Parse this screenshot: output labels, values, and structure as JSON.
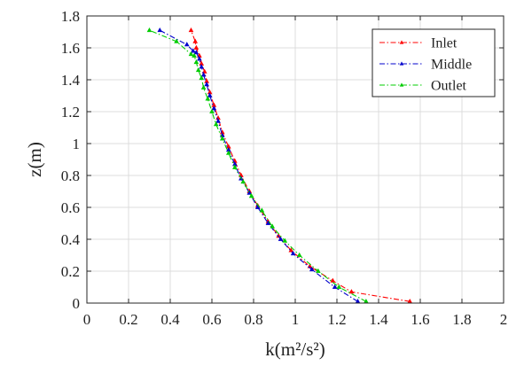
{
  "chart_data": {
    "type": "line",
    "title": "",
    "xlabel": "k(m²/s²)",
    "ylabel": "z(m)",
    "xlim": [
      0,
      2
    ],
    "ylim": [
      0,
      1.8
    ],
    "xticks": [
      "0",
      "0.2",
      "0.4",
      "0.6",
      "0.8",
      "1",
      "1.2",
      "1.4",
      "1.6",
      "1.8",
      "2"
    ],
    "yticks": [
      "0",
      "0.2",
      "0.4",
      "0.6",
      "0.8",
      "1",
      "1.2",
      "1.4",
      "1.6",
      "1.8"
    ],
    "grid": true,
    "legend_position": "top-right",
    "series": [
      {
        "name": "Inlet",
        "color": "#ff0000",
        "x": [
          1.55,
          1.27,
          1.18,
          1.07,
          0.98,
          0.92,
          0.87,
          0.82,
          0.78,
          0.74,
          0.71,
          0.68,
          0.65,
          0.63,
          0.61,
          0.59,
          0.575,
          0.565,
          0.55,
          0.54,
          0.525,
          0.52,
          0.5
        ],
        "y": [
          0.01,
          0.07,
          0.14,
          0.23,
          0.33,
          0.42,
          0.51,
          0.61,
          0.7,
          0.8,
          0.89,
          0.98,
          1.07,
          1.16,
          1.24,
          1.32,
          1.39,
          1.45,
          1.5,
          1.55,
          1.6,
          1.64,
          1.71
        ]
      },
      {
        "name": "Middle",
        "color": "#0000cc",
        "x": [
          1.3,
          1.19,
          1.08,
          0.99,
          0.93,
          0.87,
          0.82,
          0.78,
          0.74,
          0.71,
          0.68,
          0.65,
          0.63,
          0.61,
          0.59,
          0.575,
          0.56,
          0.55,
          0.54,
          0.525,
          0.51,
          0.48,
          0.35
        ],
        "y": [
          0.01,
          0.1,
          0.21,
          0.31,
          0.4,
          0.5,
          0.6,
          0.69,
          0.78,
          0.87,
          0.96,
          1.05,
          1.14,
          1.22,
          1.3,
          1.37,
          1.43,
          1.48,
          1.53,
          1.57,
          1.58,
          1.62,
          1.71
        ]
      },
      {
        "name": "Outlet",
        "color": "#00cc00",
        "x": [
          1.34,
          1.21,
          1.11,
          1.02,
          0.95,
          0.89,
          0.84,
          0.79,
          0.75,
          0.71,
          0.68,
          0.65,
          0.62,
          0.6,
          0.58,
          0.56,
          0.55,
          0.535,
          0.525,
          0.515,
          0.5,
          0.43,
          0.3
        ],
        "y": [
          0.01,
          0.1,
          0.2,
          0.3,
          0.39,
          0.48,
          0.58,
          0.67,
          0.76,
          0.85,
          0.94,
          1.03,
          1.12,
          1.2,
          1.28,
          1.35,
          1.41,
          1.46,
          1.51,
          1.55,
          1.56,
          1.64,
          1.71
        ]
      }
    ]
  }
}
